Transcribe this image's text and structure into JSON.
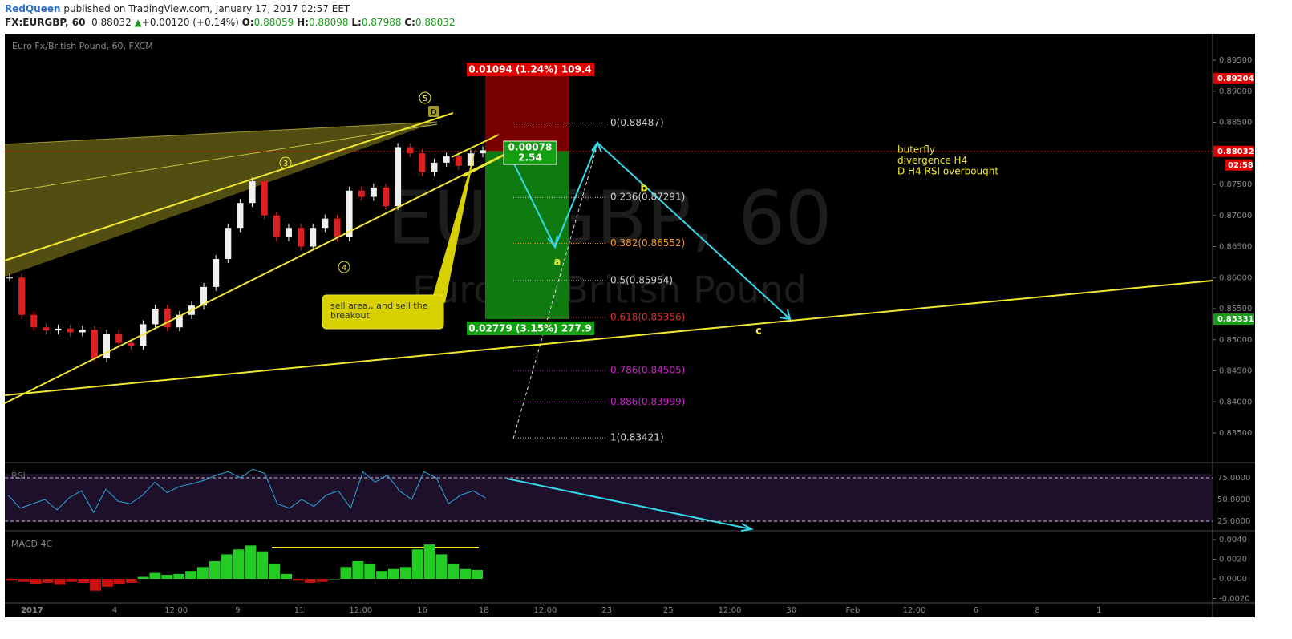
{
  "header": {
    "author": "RedQueen",
    "published": "published on TradingView.com, January 17, 2017 02:57 EET",
    "symbol": "FX:EURGBP, 60",
    "last": "0.88032",
    "arrow": "▲",
    "change": "+0.00120 (+0.14%)",
    "ohlc": [
      {
        "key": "O:",
        "value": "0.88059"
      },
      {
        "key": "H:",
        "value": "0.88098"
      },
      {
        "key": "L:",
        "value": "0.87988"
      },
      {
        "key": "C:",
        "value": "0.88032"
      }
    ]
  },
  "chart": {
    "legend": "Euro Fx/British Pound, 60, FXCM",
    "watermark": "EURGBP, 60",
    "watermark_sub": "Euro Fx/British Pound",
    "closes": [
      0.86,
      0.854,
      0.852,
      0.8515,
      0.8518,
      0.8512,
      0.8516,
      0.847,
      0.851,
      0.8495,
      0.849,
      0.8525,
      0.855,
      0.852,
      0.854,
      0.8555,
      0.8585,
      0.863,
      0.868,
      0.872,
      0.8755,
      0.87,
      0.8665,
      0.868,
      0.865,
      0.868,
      0.8695,
      0.8665,
      0.874,
      0.873,
      0.8745,
      0.8715,
      0.881,
      0.88,
      0.877,
      0.8785,
      0.8795,
      0.878,
      0.88,
      0.8805
    ],
    "price_axis": [
      {
        "value": 0.895,
        "label": "0.89500"
      },
      {
        "value": 0.89,
        "label": "0.89000"
      },
      {
        "value": 0.885,
        "label": "0.88500"
      },
      {
        "value": 0.88,
        "label": "0.88000"
      },
      {
        "value": 0.875,
        "label": "0.87500"
      },
      {
        "value": 0.87,
        "label": "0.87000"
      },
      {
        "value": 0.865,
        "label": "0.86500"
      },
      {
        "value": 0.86,
        "label": "0.86000"
      },
      {
        "value": 0.855,
        "label": "0.85500"
      },
      {
        "value": 0.85,
        "label": "0.85000"
      },
      {
        "value": 0.845,
        "label": "0.84500"
      },
      {
        "value": 0.84,
        "label": "0.84000"
      },
      {
        "value": 0.835,
        "label": "0.83500"
      }
    ],
    "price_tags": [
      {
        "label": "0.89204",
        "color": "#e00000"
      },
      {
        "label": "0.88032",
        "color": "#e00000"
      },
      {
        "label": "0.85331",
        "color": "#1a9a1a"
      }
    ],
    "countdown": "02:58",
    "time_axis": [
      "2017",
      "4",
      "12:00",
      "9",
      "11",
      "12:00",
      "16",
      "18",
      "12:00",
      "23",
      "25",
      "12:00",
      "30",
      "Feb",
      "12:00",
      "6",
      "8",
      "1"
    ],
    "fib_levels": [
      {
        "label": "0(0.88487)",
        "color": "#d0d0d0"
      },
      {
        "label": "0.236(0.87291)",
        "color": "#d0d0d0"
      },
      {
        "label": "0.382(0.86552)",
        "color": "#f7931e"
      },
      {
        "label": "0.5(0.85954)",
        "color": "#d0d0d0"
      },
      {
        "label": "0.618(0.85356)",
        "color": "#e03030"
      },
      {
        "label": "0.786(0.84505)",
        "color": "#d020d0"
      },
      {
        "label": "0.886(0.83999)",
        "color": "#d020d0"
      },
      {
        "label": "1(0.83421)",
        "color": "#d0d0d0"
      }
    ],
    "waves": [
      "5",
      "3",
      "4"
    ],
    "pattern_point": "D",
    "letters": [
      "a",
      "b",
      "c"
    ],
    "position": {
      "target": "0.01094 (1.24%) 109.4",
      "stop": "0.02779 (3.15%) 277.9",
      "current": "0.00078",
      "ratio": "2.54"
    },
    "callout": [
      "sell area,, and sell the",
      "breakout"
    ],
    "notes": [
      "buterfly",
      "divergence H4",
      "D H4 RSI overbought"
    ]
  },
  "rsi": {
    "title": "RSI",
    "values": [
      55,
      40,
      45,
      50,
      38,
      52,
      60,
      35,
      62,
      48,
      45,
      55,
      70,
      58,
      65,
      68,
      72,
      78,
      82,
      75,
      85,
      80,
      45,
      40,
      50,
      42,
      55,
      60,
      40,
      82,
      70,
      78,
      60,
      50,
      82,
      75,
      45,
      55,
      60,
      52
    ],
    "ticks": [
      {
        "value": 75,
        "label": "75.0000"
      },
      {
        "value": 50,
        "label": "50.0000"
      },
      {
        "value": 25,
        "label": "25.0000"
      }
    ]
  },
  "macd": {
    "title": "MACD 4C",
    "values": [
      -0.0002,
      -0.0003,
      -0.0005,
      -0.0004,
      -0.0006,
      -0.0003,
      -0.0004,
      -0.0012,
      -0.0008,
      -0.0005,
      -0.0004,
      0.0002,
      0.0006,
      0.0004,
      0.0005,
      0.0008,
      0.0012,
      0.0018,
      0.0025,
      0.003,
      0.0034,
      0.0028,
      0.0015,
      0.0005,
      -0.0002,
      -0.0004,
      -0.0003,
      0.0,
      0.0012,
      0.0018,
      0.0015,
      0.0008,
      0.001,
      0.0012,
      0.003,
      0.0035,
      0.0025,
      0.0015,
      0.001,
      0.0009
    ],
    "ticks": [
      {
        "value": 0.004,
        "label": "0.0040"
      },
      {
        "value": 0.002,
        "label": "0.0020"
      },
      {
        "value": 0,
        "label": "0.0000"
      },
      {
        "value": -0.002,
        "label": "-0.0020"
      }
    ]
  }
}
